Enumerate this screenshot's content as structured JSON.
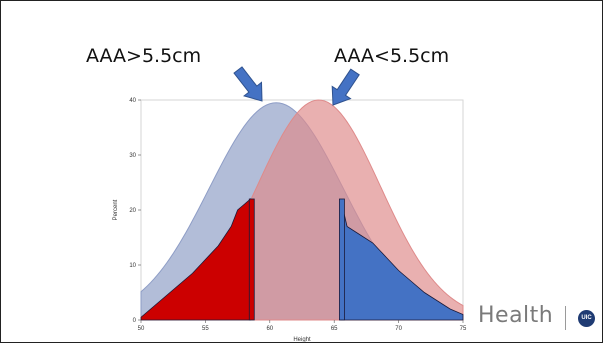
{
  "slide": {
    "annotation_left": "AAA>5.5cm",
    "annotation_right": "AAA<5.5cm",
    "brand_text": "Health",
    "brand_logo_text": "UIC"
  },
  "colors": {
    "curve_blue": "#8e9dc6",
    "curve_red": "#df8a8a",
    "fill_red": "#cc0000",
    "fill_blue": "#4472c4",
    "arrow": "#4472c4",
    "overlap": "#c08d96"
  },
  "chart_data": {
    "type": "area",
    "xlabel": "Height",
    "ylabel": "Percent",
    "xlim": [
      50,
      75
    ],
    "ylim": [
      0,
      40
    ],
    "xticks": [
      50,
      55,
      60,
      65,
      70,
      75
    ],
    "yticks": [
      0,
      10,
      20,
      30,
      40
    ],
    "grid": false,
    "series": [
      {
        "kind": "normal-curve",
        "color": "#8e9dc6",
        "mean": 60.5,
        "sd": 5.2,
        "peak": 39.5
      },
      {
        "kind": "normal-curve",
        "color": "#df8a8a",
        "mean": 63.8,
        "sd": 4.8,
        "peak": 40.0
      },
      {
        "kind": "filled-tail",
        "color": "#cc0000",
        "x": [
          50,
          51,
          52,
          53,
          54,
          55,
          56,
          57,
          57.5,
          58,
          58.5
        ],
        "y": [
          0.5,
          2.5,
          4.5,
          6.5,
          8.5,
          11,
          13.5,
          17,
          20,
          21,
          22
        ]
      },
      {
        "kind": "filled-tail",
        "color": "#4472c4",
        "x": [
          65.5,
          66,
          67,
          68,
          69,
          70,
          71,
          72,
          73,
          74,
          75
        ],
        "y": [
          22,
          17,
          15.5,
          14,
          11.5,
          9,
          7,
          5,
          3.5,
          2,
          1
        ]
      }
    ],
    "highlight_bars": [
      {
        "x": 58.6,
        "height": 22,
        "color": "#cc0000"
      },
      {
        "x": 65.6,
        "height": 22,
        "color": "#4472c4"
      }
    ]
  }
}
